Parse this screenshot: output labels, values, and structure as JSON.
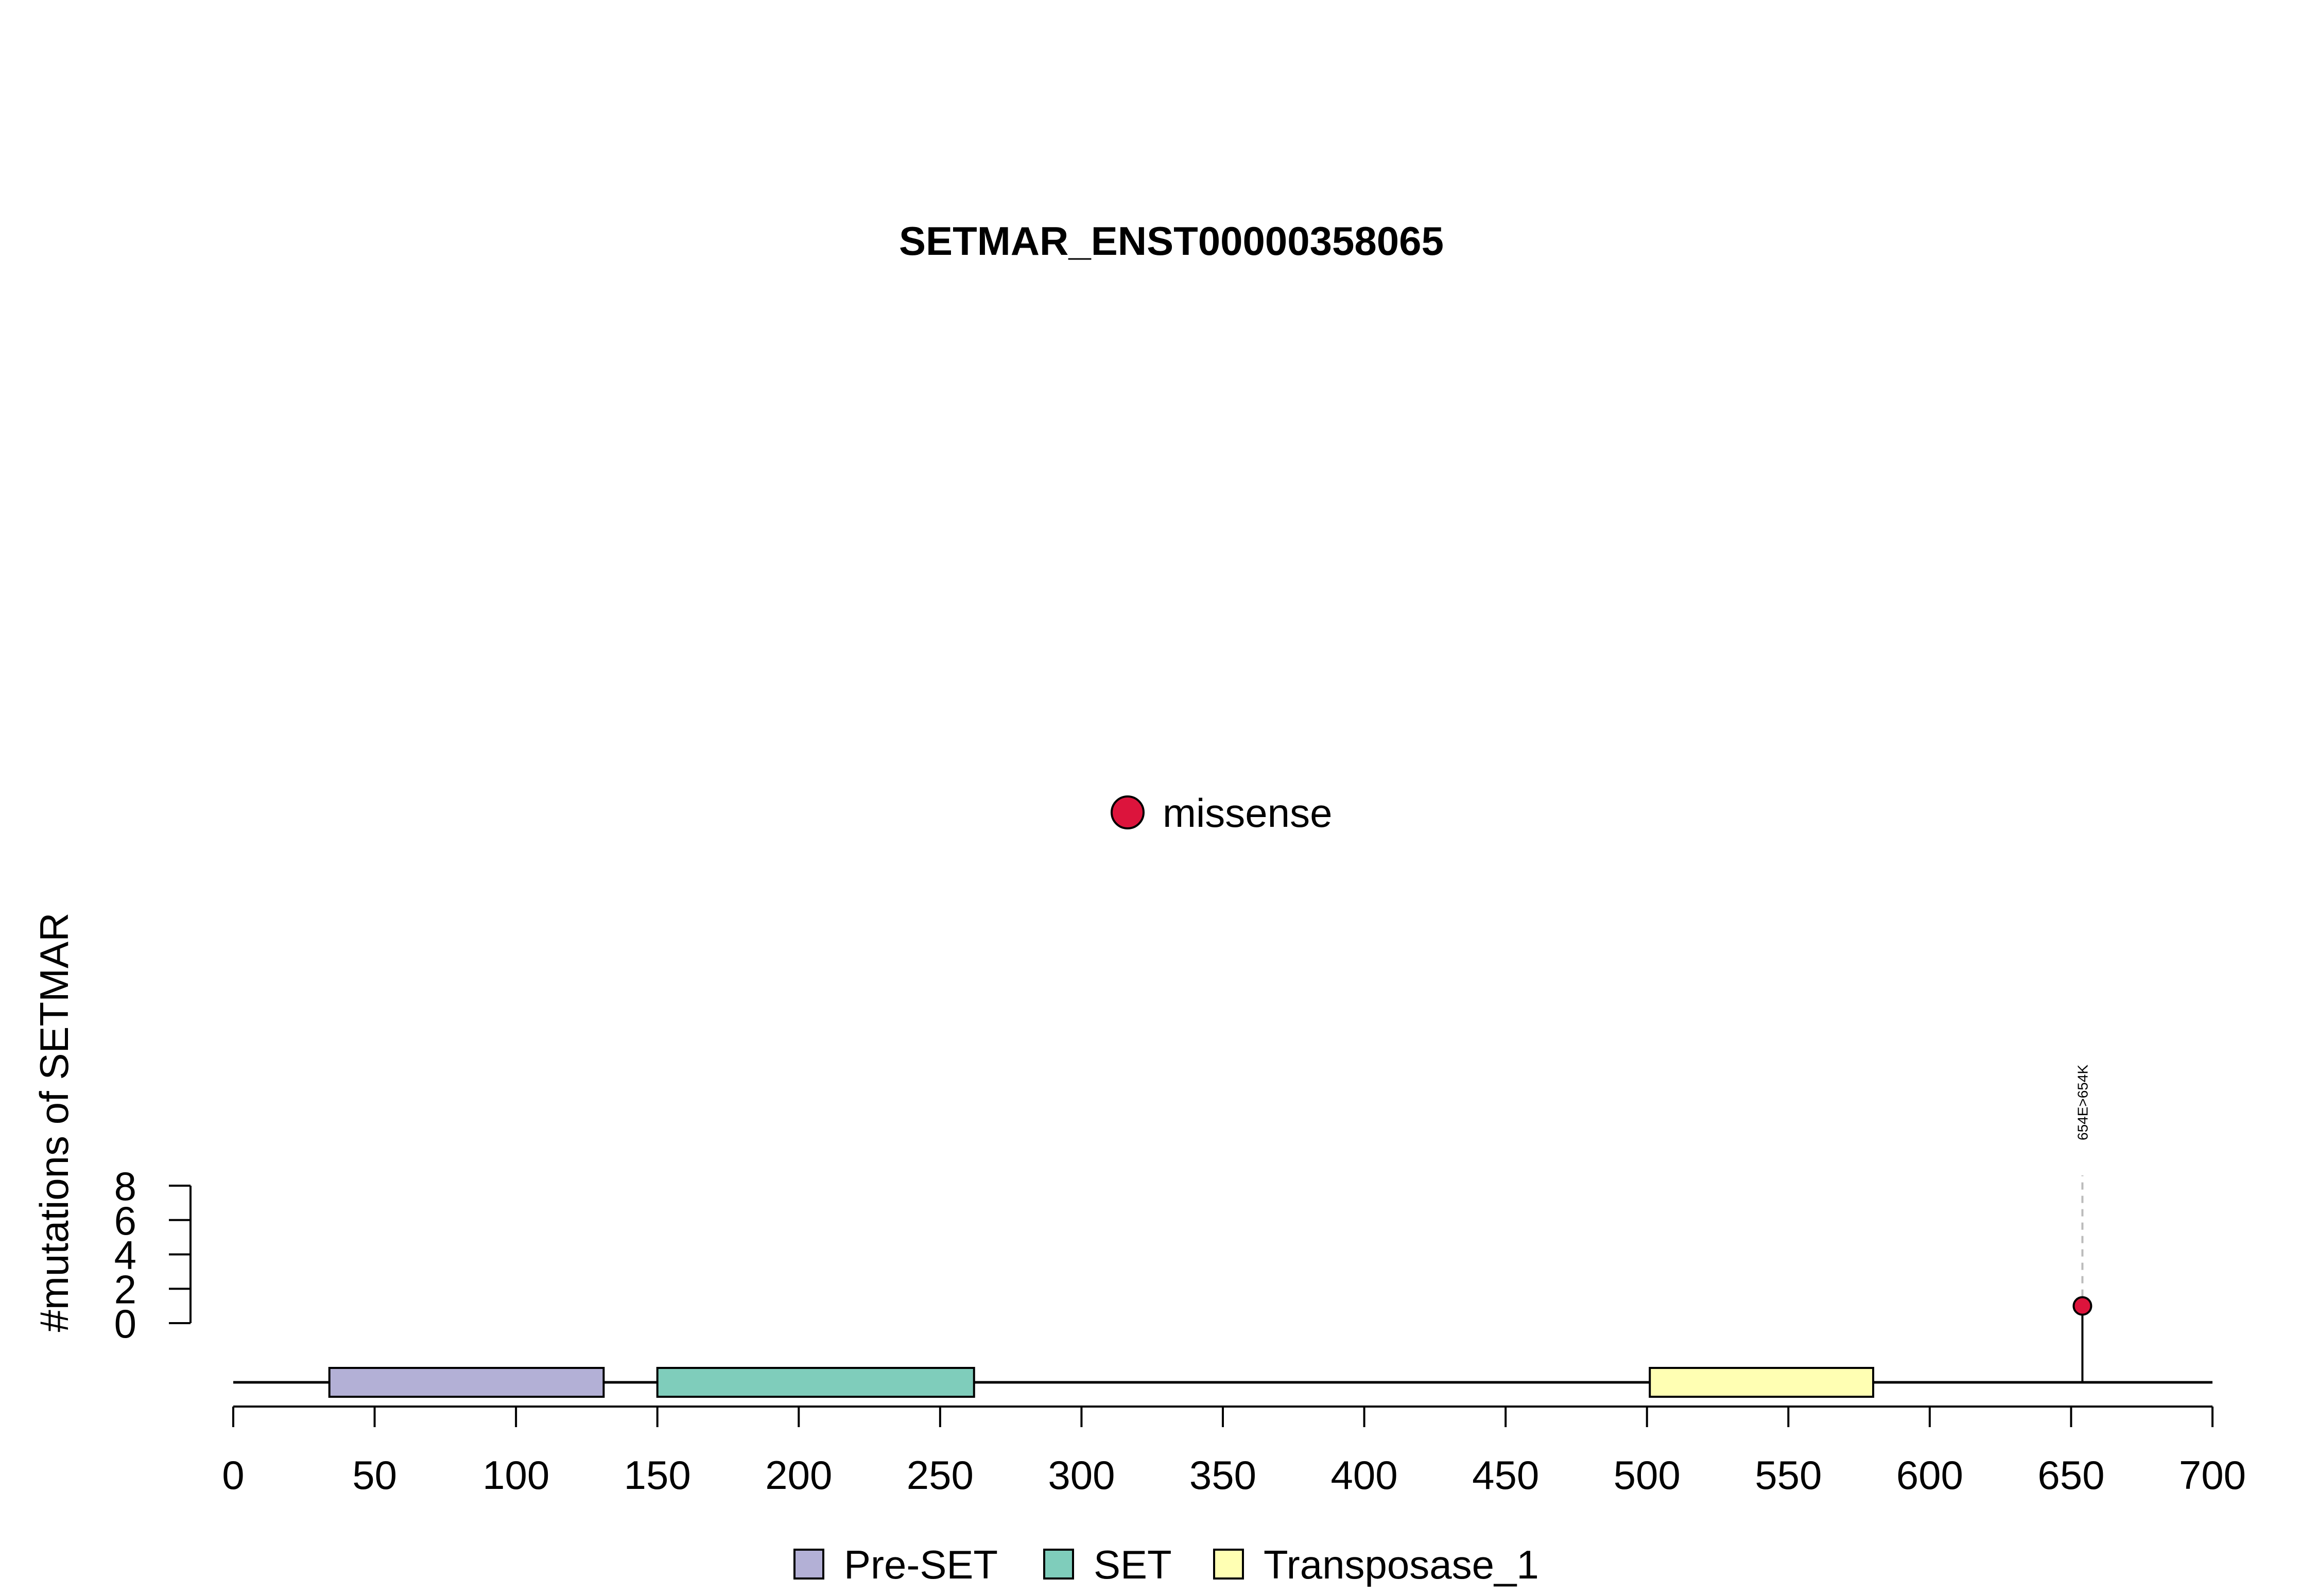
{
  "chart_data": {
    "type": "scatter",
    "title": "SETMAR_ENST00000358065",
    "xlabel": "",
    "ylabel": "#mutations of SETMAR",
    "xlim": [
      0,
      700
    ],
    "ylim": [
      0,
      8
    ],
    "x_ticks": [
      0,
      50,
      100,
      150,
      200,
      250,
      300,
      350,
      400,
      450,
      500,
      550,
      600,
      650,
      700
    ],
    "y_ticks": [
      0,
      2,
      4,
      6,
      8
    ],
    "protein_length": 700,
    "domains": [
      {
        "name": "Pre-SET",
        "start": 34,
        "end": 131,
        "color": "#b3b0d6"
      },
      {
        "name": "SET",
        "start": 150,
        "end": 262,
        "color": "#7fcdbb"
      },
      {
        "name": "Transposase_1",
        "start": 501,
        "end": 580,
        "color": "#ffffb3"
      }
    ],
    "series": [
      {
        "name": "missense",
        "color": "#dc143c",
        "points": [
          {
            "position": 654,
            "count": 1,
            "label": "654E>654K"
          }
        ]
      }
    ],
    "legend": {
      "mutation_types": [
        "missense"
      ],
      "domains": [
        "Pre-SET",
        "SET",
        "Transposase_1"
      ],
      "mutation_legend_position": "center",
      "domain_legend_position": "bottom"
    },
    "grid": false
  }
}
